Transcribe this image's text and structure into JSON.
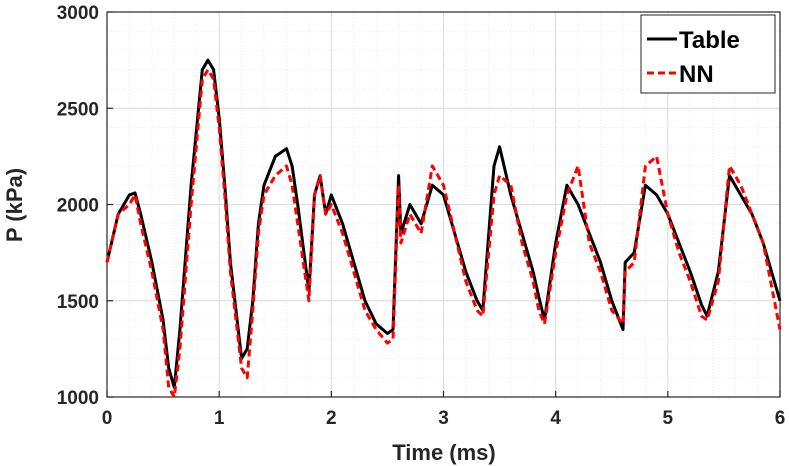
{
  "chart_data": {
    "type": "line",
    "title": "",
    "xlabel": "Time (ms)",
    "ylabel": "P (kPa)",
    "xlim": [
      0,
      6
    ],
    "ylim": [
      1000,
      3000
    ],
    "xticks": [
      "0",
      "1",
      "2",
      "3",
      "4",
      "5",
      "6"
    ],
    "yticks": [
      "1000",
      "1500",
      "2000",
      "2500",
      "3000"
    ],
    "grid": true,
    "minor_grid": true,
    "legend_position": "top-right",
    "series": [
      {
        "name": "Table",
        "color": "#000000",
        "style": "solid",
        "x": [
          0,
          0.1,
          0.2,
          0.25,
          0.3,
          0.4,
          0.5,
          0.55,
          0.6,
          0.65,
          0.75,
          0.85,
          0.9,
          0.95,
          1.0,
          1.05,
          1.1,
          1.2,
          1.25,
          1.3,
          1.35,
          1.4,
          1.5,
          1.6,
          1.65,
          1.7,
          1.8,
          1.85,
          1.9,
          1.95,
          2.0,
          2.1,
          2.2,
          2.3,
          2.4,
          2.5,
          2.55,
          2.6,
          2.62,
          2.7,
          2.8,
          2.9,
          3.0,
          3.1,
          3.2,
          3.3,
          3.35,
          3.45,
          3.5,
          3.6,
          3.7,
          3.8,
          3.85,
          3.9,
          4.0,
          4.1,
          4.2,
          4.3,
          4.4,
          4.5,
          4.6,
          4.62,
          4.7,
          4.8,
          4.9,
          5.0,
          5.1,
          5.2,
          5.3,
          5.35,
          5.45,
          5.55,
          5.65,
          5.75,
          5.85,
          5.95,
          6.0
        ],
        "y": [
          1700,
          1950,
          2050,
          2060,
          1950,
          1700,
          1400,
          1150,
          1050,
          1350,
          2100,
          2700,
          2750,
          2700,
          2450,
          2100,
          1700,
          1200,
          1250,
          1500,
          1900,
          2100,
          2250,
          2290,
          2200,
          2000,
          1550,
          2050,
          2150,
          1950,
          2050,
          1900,
          1700,
          1500,
          1380,
          1330,
          1350,
          2150,
          1850,
          2000,
          1900,
          2100,
          2050,
          1850,
          1650,
          1500,
          1450,
          2200,
          2300,
          2050,
          1850,
          1650,
          1520,
          1400,
          1800,
          2100,
          2000,
          1850,
          1700,
          1500,
          1350,
          1700,
          1750,
          2100,
          2050,
          1950,
          1800,
          1650,
          1480,
          1420,
          1650,
          2150,
          2050,
          1950,
          1800,
          1600,
          1500
        ]
      },
      {
        "name": "NN",
        "color": "#ff0000",
        "style": "dashed",
        "x": [
          0,
          0.1,
          0.2,
          0.25,
          0.3,
          0.4,
          0.5,
          0.55,
          0.6,
          0.65,
          0.75,
          0.85,
          0.9,
          0.95,
          1.0,
          1.05,
          1.1,
          1.2,
          1.25,
          1.3,
          1.35,
          1.4,
          1.5,
          1.6,
          1.65,
          1.7,
          1.8,
          1.85,
          1.9,
          1.95,
          2.0,
          2.1,
          2.2,
          2.3,
          2.4,
          2.5,
          2.55,
          2.6,
          2.62,
          2.7,
          2.8,
          2.9,
          3.0,
          3.1,
          3.2,
          3.3,
          3.35,
          3.45,
          3.5,
          3.6,
          3.7,
          3.8,
          3.85,
          3.9,
          4.0,
          4.1,
          4.2,
          4.3,
          4.4,
          4.5,
          4.6,
          4.62,
          4.7,
          4.8,
          4.9,
          5.0,
          5.1,
          5.2,
          5.3,
          5.35,
          5.45,
          5.55,
          5.65,
          5.75,
          5.85,
          5.95,
          6.0
        ],
        "y": [
          1700,
          1950,
          2000,
          2050,
          1900,
          1650,
          1350,
          1050,
          1000,
          1250,
          2000,
          2650,
          2700,
          2650,
          2400,
          2050,
          1650,
          1150,
          1100,
          1450,
          1850,
          2050,
          2150,
          2200,
          2100,
          1900,
          1500,
          2050,
          2150,
          1950,
          2000,
          1850,
          1650,
          1450,
          1350,
          1280,
          1300,
          2100,
          1800,
          1950,
          1850,
          2200,
          2100,
          1850,
          1600,
          1450,
          1420,
          2050,
          2150,
          2100,
          1800,
          1600,
          1450,
          1380,
          1750,
          2050,
          2200,
          1800,
          1650,
          1450,
          1380,
          1650,
          1700,
          2200,
          2250,
          1950,
          1750,
          1600,
          1420,
          1400,
          1600,
          2200,
          2100,
          1950,
          1800,
          1500,
          1350
        ]
      }
    ]
  }
}
